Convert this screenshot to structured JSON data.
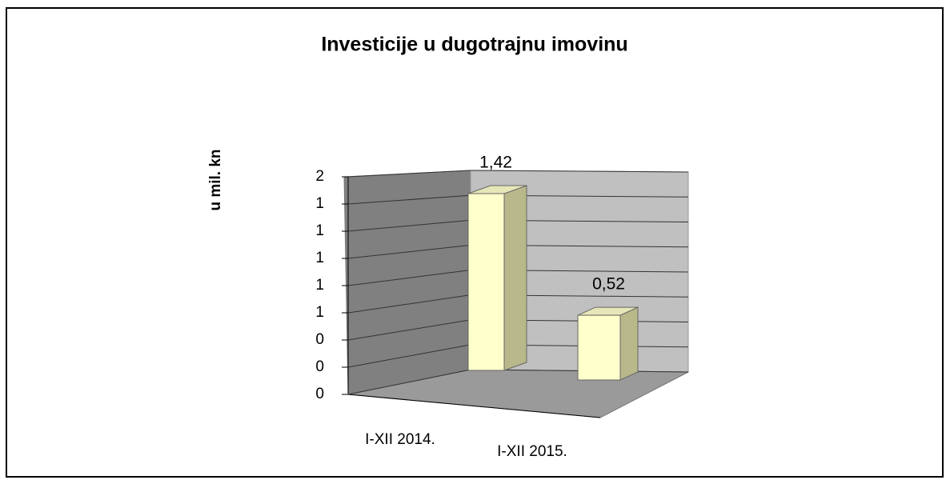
{
  "chart_data": {
    "type": "bar3d",
    "title": "Investicije u dugotrajnu imovinu",
    "y_label": "u mil. kn",
    "categories": [
      "I-XII 2014.",
      "I-XII 2015."
    ],
    "values": [
      1.42,
      0.52
    ],
    "value_labels": [
      "1,42",
      "0,52"
    ],
    "color": "#ffffcc",
    "ylim": [
      0,
      1.6
    ],
    "yticks": [
      0,
      {
        "value": 0.2,
        "label": "0"
      },
      {
        "value": 0.4,
        "label": "0"
      },
      {
        "value": 0.6,
        "label": "1"
      },
      {
        "value": 0.8,
        "label": "1"
      },
      1,
      {
        "value": 1.2,
        "label": "1"
      },
      {
        "value": 1.4,
        "label": "1"
      },
      {
        "value": 1.6,
        "label": "2"
      }
    ],
    "grid": true
  }
}
